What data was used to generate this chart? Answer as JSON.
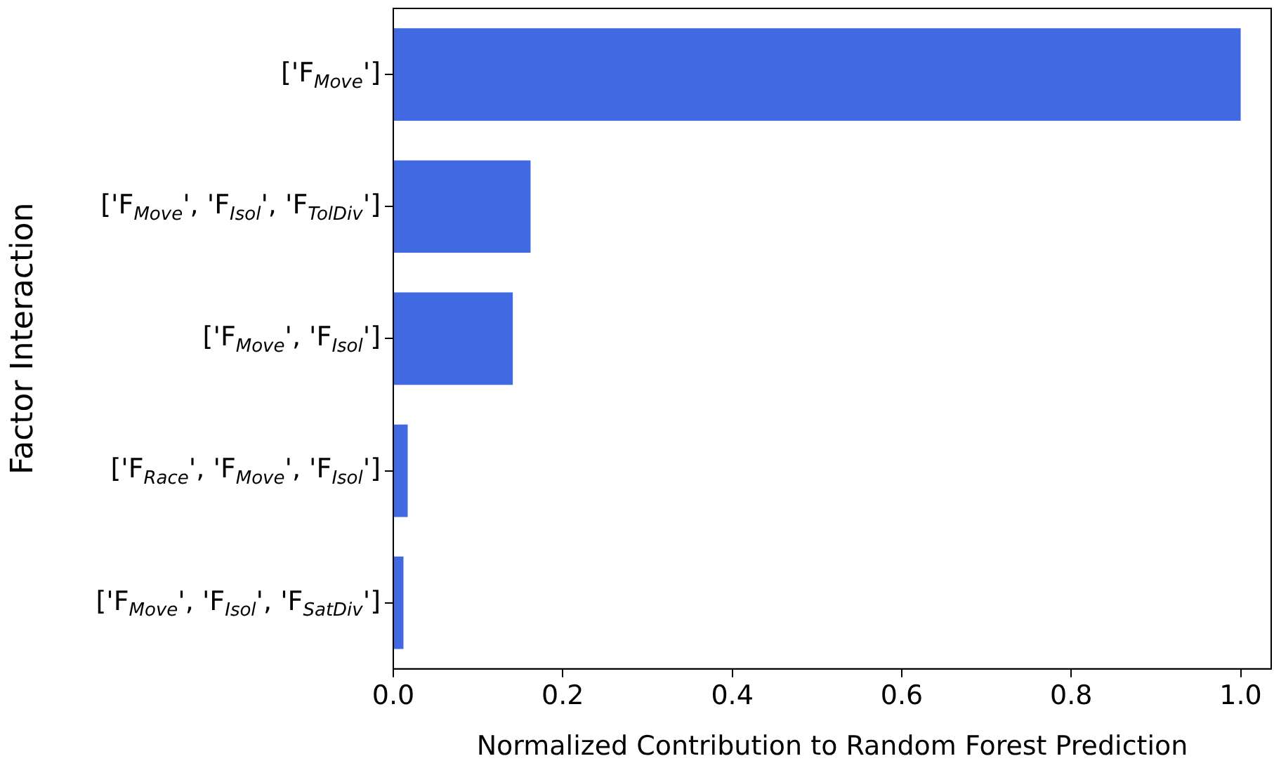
{
  "chart_data": {
    "type": "bar",
    "orientation": "horizontal",
    "categories": [
      "['F$_{Move}$']",
      "['F$_{Move}$', 'F$_{Isol}$', 'F$_{TolDiv}$']",
      "['F$_{Move}$', 'F$_{Isol}$']",
      "['F$_{Race}$', 'F$_{Move}$', 'F$_{Isol}$']",
      "['F$_{Move}$', 'F$_{Isol}$', 'F$_{SatDiv}$']"
    ],
    "values": [
      1.0,
      0.162,
      0.141,
      0.017,
      0.012
    ],
    "color": "#4169e1",
    "xlabel": "Normalized Contribution to Random Forest Prediction",
    "ylabel": "Factor Interaction",
    "xlim": [
      0,
      1.036
    ],
    "xticks": [
      {
        "value": 0,
        "label": "0.0"
      },
      {
        "value": 0.2,
        "label": "0.2"
      },
      {
        "value": 0.4,
        "label": "0.4"
      },
      {
        "value": 0.6,
        "label": "0.6"
      },
      {
        "value": 0.8,
        "label": "0.8"
      },
      {
        "value": 1,
        "label": "1.0"
      }
    ],
    "grid": false,
    "legend": false
  }
}
